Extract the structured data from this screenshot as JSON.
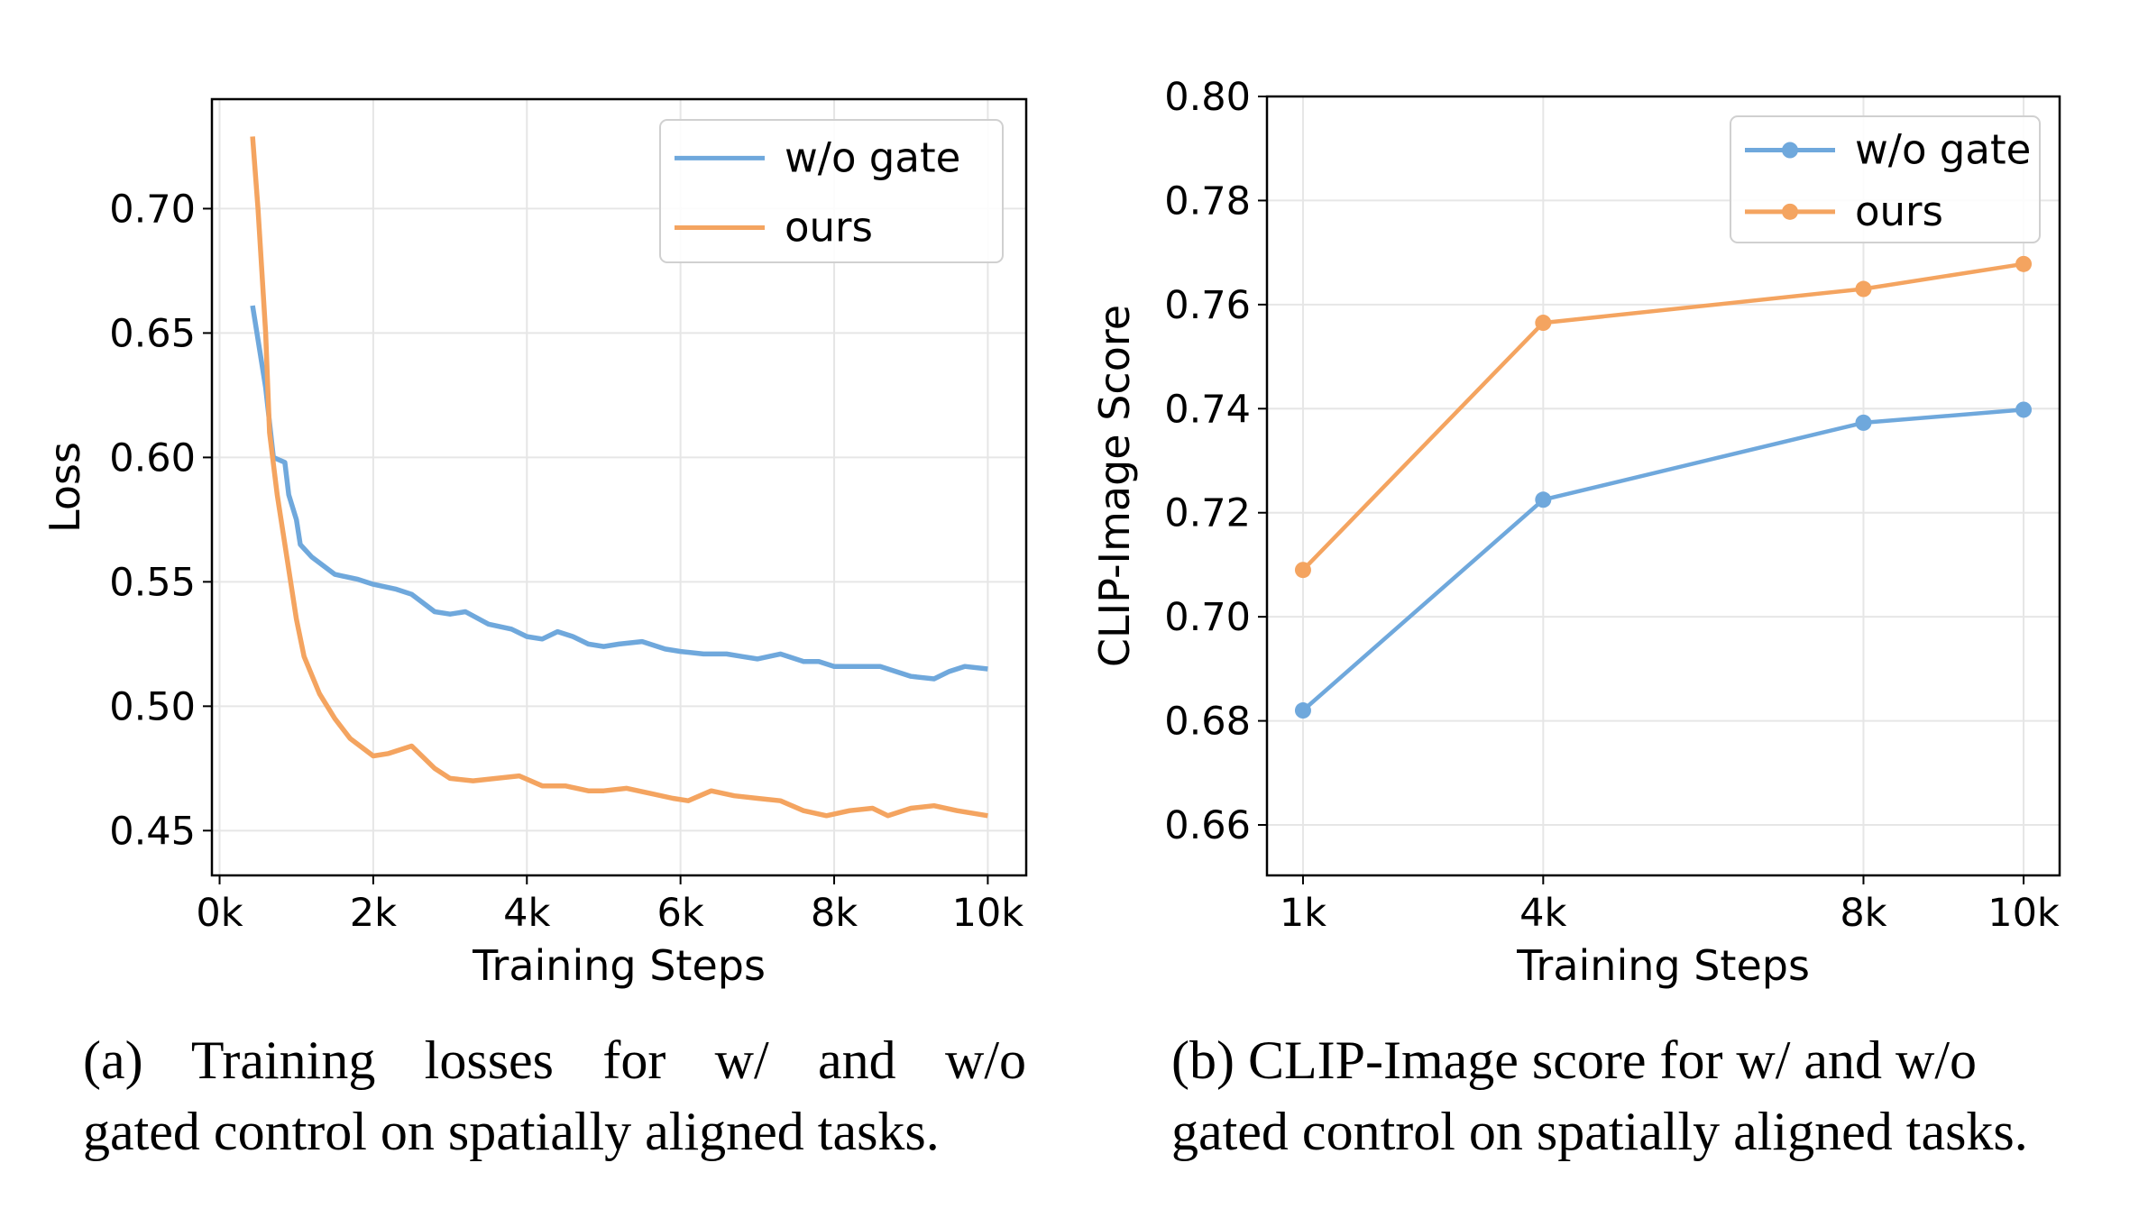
{
  "chart_data": [
    {
      "type": "line",
      "xlabel": "Training Steps",
      "ylabel": "Loss",
      "xlim": [
        -0.1,
        10.5
      ],
      "ylim": [
        0.432,
        0.744
      ],
      "xticks": [
        0,
        2,
        4,
        6,
        8,
        10
      ],
      "xtick_labels": [
        "0k",
        "2k",
        "4k",
        "6k",
        "8k",
        "10k"
      ],
      "yticks": [
        0.45,
        0.5,
        0.55,
        0.6,
        0.65,
        0.7
      ],
      "ytick_labels": [
        "0.45",
        "0.50",
        "0.55",
        "0.60",
        "0.65",
        "0.70"
      ],
      "grid": true,
      "legend_position": "top-right",
      "series": [
        {
          "name": "w/o gate",
          "color": "#6fa8dc",
          "points": [
            [
              0.43,
              0.661
            ],
            [
              0.6,
              0.628
            ],
            [
              0.7,
              0.6
            ],
            [
              0.85,
              0.598
            ],
            [
              0.9,
              0.585
            ],
            [
              1.0,
              0.575
            ],
            [
              1.05,
              0.565
            ],
            [
              1.2,
              0.56
            ],
            [
              1.5,
              0.553
            ],
            [
              1.8,
              0.551
            ],
            [
              2.0,
              0.549
            ],
            [
              2.3,
              0.547
            ],
            [
              2.5,
              0.545
            ],
            [
              2.8,
              0.538
            ],
            [
              3.0,
              0.537
            ],
            [
              3.2,
              0.538
            ],
            [
              3.5,
              0.533
            ],
            [
              3.8,
              0.531
            ],
            [
              4.0,
              0.528
            ],
            [
              4.2,
              0.527
            ],
            [
              4.4,
              0.53
            ],
            [
              4.6,
              0.528
            ],
            [
              4.8,
              0.525
            ],
            [
              5.0,
              0.524
            ],
            [
              5.2,
              0.525
            ],
            [
              5.5,
              0.526
            ],
            [
              5.8,
              0.523
            ],
            [
              6.0,
              0.522
            ],
            [
              6.3,
              0.521
            ],
            [
              6.6,
              0.521
            ],
            [
              6.8,
              0.52
            ],
            [
              7.0,
              0.519
            ],
            [
              7.3,
              0.521
            ],
            [
              7.6,
              0.518
            ],
            [
              7.8,
              0.518
            ],
            [
              8.0,
              0.516
            ],
            [
              8.3,
              0.516
            ],
            [
              8.6,
              0.516
            ],
            [
              8.8,
              0.514
            ],
            [
              9.0,
              0.512
            ],
            [
              9.3,
              0.511
            ],
            [
              9.5,
              0.514
            ],
            [
              9.7,
              0.516
            ],
            [
              10.0,
              0.515
            ]
          ]
        },
        {
          "name": "ours",
          "color": "#f4a460",
          "points": [
            [
              0.43,
              0.729
            ],
            [
              0.5,
              0.7
            ],
            [
              0.6,
              0.65
            ],
            [
              0.65,
              0.61
            ],
            [
              0.75,
              0.585
            ],
            [
              0.9,
              0.555
            ],
            [
              1.0,
              0.535
            ],
            [
              1.1,
              0.52
            ],
            [
              1.3,
              0.505
            ],
            [
              1.5,
              0.495
            ],
            [
              1.7,
              0.487
            ],
            [
              2.0,
              0.48
            ],
            [
              2.2,
              0.481
            ],
            [
              2.5,
              0.484
            ],
            [
              2.8,
              0.475
            ],
            [
              3.0,
              0.471
            ],
            [
              3.3,
              0.47
            ],
            [
              3.6,
              0.471
            ],
            [
              3.9,
              0.472
            ],
            [
              4.2,
              0.468
            ],
            [
              4.5,
              0.468
            ],
            [
              4.8,
              0.466
            ],
            [
              5.0,
              0.466
            ],
            [
              5.3,
              0.467
            ],
            [
              5.6,
              0.465
            ],
            [
              5.9,
              0.463
            ],
            [
              6.1,
              0.462
            ],
            [
              6.4,
              0.466
            ],
            [
              6.7,
              0.464
            ],
            [
              7.0,
              0.463
            ],
            [
              7.3,
              0.462
            ],
            [
              7.6,
              0.458
            ],
            [
              7.9,
              0.456
            ],
            [
              8.2,
              0.458
            ],
            [
              8.5,
              0.459
            ],
            [
              8.7,
              0.456
            ],
            [
              9.0,
              0.459
            ],
            [
              9.3,
              0.46
            ],
            [
              9.6,
              0.458
            ],
            [
              10.0,
              0.456
            ]
          ]
        }
      ]
    },
    {
      "type": "line",
      "markers": true,
      "xlabel": "Training Steps",
      "ylabel": "CLIP-Image Score",
      "xlim": [
        0.55,
        10.45
      ],
      "ylim": [
        0.6503,
        0.8
      ],
      "xticks": [
        1,
        4,
        8,
        10
      ],
      "xtick_labels": [
        "1k",
        "4k",
        "8k",
        "10k"
      ],
      "yticks": [
        0.66,
        0.68,
        0.7,
        0.72,
        0.74,
        0.76,
        0.78,
        0.8
      ],
      "ytick_labels": [
        "0.66",
        "0.68",
        "0.70",
        "0.72",
        "0.74",
        "0.76",
        "0.78",
        "0.80"
      ],
      "grid": true,
      "legend_position": "top-right",
      "series": [
        {
          "name": "w/o gate",
          "color": "#6fa8dc",
          "points": [
            [
              1,
              0.682
            ],
            [
              4,
              0.7225
            ],
            [
              8,
              0.7373
            ],
            [
              10,
              0.7398
            ]
          ]
        },
        {
          "name": "ours",
          "color": "#f4a460",
          "points": [
            [
              1,
              0.709
            ],
            [
              4,
              0.7565
            ],
            [
              8,
              0.763
            ],
            [
              10,
              0.7678
            ]
          ]
        }
      ]
    }
  ],
  "captions": {
    "a_line1": "(a) Training losses for w/ and w/o",
    "a_line2": "gated control on spatially aligned tasks.",
    "b_line1": "(b) CLIP-Image score for w/ and w/o",
    "b_line2": "gated control on spatially aligned tasks."
  }
}
